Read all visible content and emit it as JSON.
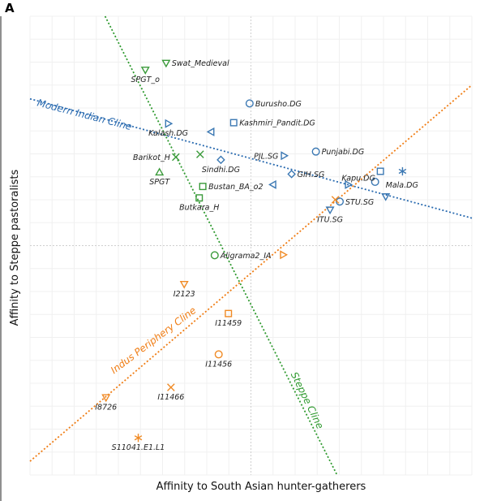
{
  "panel_letter": "A",
  "chart_data": {
    "type": "scatter",
    "xlabel": "Affinity to South Asian hunter-gatherers",
    "ylabel": "Affinity to Steppe pastoralists",
    "xlim": [
      0,
      100
    ],
    "ylim": [
      0,
      100
    ],
    "grid": true,
    "colors": {
      "blue": "#3b78b3",
      "green": "#3a9a3a",
      "orange": "#f08a24",
      "modern_cline": "#2a6bb0",
      "steppe_cline": "#2f9a2f",
      "indus_cline": "#f07d14"
    },
    "clines": [
      {
        "name": "Modern Indian Cline",
        "color": "modern_cline",
        "x": [
          0,
          100
        ],
        "y": [
          82,
          56
        ],
        "label_x": 1.5,
        "label_y": 80.5,
        "label_rotation": 14.5
      },
      {
        "name": "Steppe Cline",
        "color": "steppe_cline",
        "x": [
          17,
          69.5
        ],
        "y": [
          100,
          0
        ],
        "label_x": 59,
        "label_y": 22,
        "label_rotation": 64
      },
      {
        "name": "Indus Periphery Cline",
        "color": "indus_cline",
        "x": [
          0,
          100
        ],
        "y": [
          3,
          85
        ],
        "label_x": 19,
        "label_y": 22,
        "label_rotation": -37
      }
    ],
    "points": [
      {
        "label": "Swat_Medieval",
        "x": 30.8,
        "y": 89.8,
        "color": "green",
        "marker": "triangle-down",
        "label_side": "right"
      },
      {
        "label": "SPGT_o",
        "x": 26.1,
        "y": 88.3,
        "color": "green",
        "marker": "triangle-down",
        "label_side": "below"
      },
      {
        "label": "Kalash.DG",
        "x": 31.3,
        "y": 76.6,
        "color": "blue",
        "marker": "triangle-right",
        "label_side": "below"
      },
      {
        "label": "Burusho.DG",
        "x": 49.7,
        "y": 81.0,
        "color": "blue",
        "marker": "circle",
        "label_side": "right"
      },
      {
        "label": "Kashmiri_Pandit.DG",
        "x": 46.1,
        "y": 76.8,
        "color": "blue",
        "marker": "square",
        "label_side": "right"
      },
      {
        "label": "",
        "x": 41.0,
        "y": 74.8,
        "color": "blue",
        "marker": "triangle-left",
        "label_side": "none"
      },
      {
        "label": "Barikot_H",
        "x": 33.0,
        "y": 69.3,
        "color": "green",
        "marker": "x",
        "label_side": "left"
      },
      {
        "label": "",
        "x": 38.5,
        "y": 69.9,
        "color": "green",
        "marker": "x",
        "label_side": "none"
      },
      {
        "label": "Sindhi.DG",
        "x": 43.2,
        "y": 68.7,
        "color": "blue",
        "marker": "diamond",
        "label_side": "below"
      },
      {
        "label": "PJL.SG",
        "x": 57.5,
        "y": 69.6,
        "color": "blue",
        "marker": "triangle-right",
        "label_side": "left"
      },
      {
        "label": "Punjabi.DG",
        "x": 64.7,
        "y": 70.5,
        "color": "blue",
        "marker": "circle",
        "label_side": "right"
      },
      {
        "label": "SPGT",
        "x": 29.3,
        "y": 66.0,
        "color": "green",
        "marker": "triangle-up",
        "label_side": "below"
      },
      {
        "label": "GIH.SG",
        "x": 59.2,
        "y": 65.6,
        "color": "blue",
        "marker": "diamond",
        "label_side": "right"
      },
      {
        "label": "Bustan_BA_o2",
        "x": 39.1,
        "y": 62.9,
        "color": "green",
        "marker": "square",
        "label_side": "right"
      },
      {
        "label": "",
        "x": 55.0,
        "y": 63.3,
        "color": "blue",
        "marker": "triangle-left",
        "label_side": "none"
      },
      {
        "label": "Kapu.DG",
        "x": 72.0,
        "y": 63.3,
        "color": "blue",
        "marker": "triangle-right",
        "label_side": "right-up"
      },
      {
        "label": "",
        "x": 79.3,
        "y": 66.2,
        "color": "blue",
        "marker": "square",
        "label_side": "none"
      },
      {
        "label": "Mala.DG",
        "x": 78.1,
        "y": 63.9,
        "color": "blue",
        "marker": "circle",
        "label_side": "right-down"
      },
      {
        "label": "",
        "x": 84.3,
        "y": 66.2,
        "color": "blue",
        "marker": "star",
        "label_side": "none"
      },
      {
        "label": "",
        "x": 80.5,
        "y": 60.7,
        "color": "blue",
        "marker": "triangle-down",
        "label_side": "none"
      },
      {
        "label": "Butkara_H",
        "x": 38.3,
        "y": 60.4,
        "color": "green",
        "marker": "square",
        "label_side": "below"
      },
      {
        "label": "STU.SG",
        "x": 70.1,
        "y": 59.6,
        "color": "blue",
        "marker": "circle",
        "label_side": "right"
      },
      {
        "label": "",
        "x": 69.1,
        "y": 60.0,
        "color": "orange",
        "marker": "x",
        "label_side": "none"
      },
      {
        "label": "ITU.SG",
        "x": 67.9,
        "y": 57.8,
        "color": "blue",
        "marker": "triangle-down",
        "label_side": "below"
      },
      {
        "label": "Aligrama2_IA",
        "x": 41.8,
        "y": 47.9,
        "color": "green",
        "marker": "circle",
        "label_side": "right"
      },
      {
        "label": "",
        "x": 57.3,
        "y": 48.0,
        "color": "orange",
        "marker": "triangle-right",
        "label_side": "none"
      },
      {
        "label": "I2123",
        "x": 34.9,
        "y": 41.6,
        "color": "orange",
        "marker": "triangle-down",
        "label_side": "below"
      },
      {
        "label": "I11459",
        "x": 44.9,
        "y": 35.2,
        "color": "orange",
        "marker": "square",
        "label_side": "below"
      },
      {
        "label": "I11456",
        "x": 42.7,
        "y": 26.3,
        "color": "orange",
        "marker": "circle",
        "label_side": "below"
      },
      {
        "label": "I11466",
        "x": 31.9,
        "y": 19.1,
        "color": "orange",
        "marker": "x",
        "label_side": "below"
      },
      {
        "label": "I8726",
        "x": 17.2,
        "y": 16.9,
        "color": "orange",
        "marker": "triangle-down",
        "label_side": "below"
      },
      {
        "label": "S11041.E1.L1",
        "x": 24.5,
        "y": 8.1,
        "color": "orange",
        "marker": "star",
        "label_side": "below"
      }
    ]
  }
}
